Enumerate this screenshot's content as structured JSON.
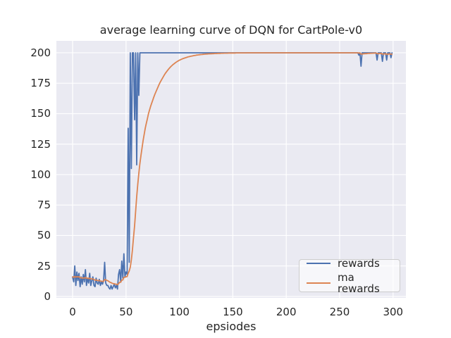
{
  "title": "average learning curve of DQN for CartPole-v0",
  "xlabel": "epsiodes",
  "colors": {
    "figure_background": "#ffffff",
    "axes_background": "#eaeaf2",
    "grid": "#ffffff",
    "text": "#262626",
    "rewards_line": "#4c72b0",
    "ma_rewards_line": "#dd8452",
    "legend_border": "#cccccc"
  },
  "legend": {
    "position": "lower right",
    "items": [
      {
        "label": "rewards",
        "color": "#4c72b0"
      },
      {
        "label": "ma rewards",
        "color": "#dd8452"
      }
    ]
  },
  "chart_data": {
    "type": "line",
    "title": "average learning curve of DQN for CartPole-v0",
    "xlabel": "epsiodes",
    "ylabel": "",
    "grid": true,
    "legend_position": "lower right",
    "x_ticks": [
      0,
      50,
      100,
      150,
      200,
      250,
      300
    ],
    "y_ticks": [
      0,
      25,
      50,
      75,
      100,
      125,
      150,
      175,
      200
    ],
    "xlim": [
      -15.2,
      312.0
    ],
    "ylim": [
      -1.2,
      209.8
    ],
    "x_start": 0,
    "x_step": 1,
    "series": [
      {
        "name": "rewards",
        "color": "#4c72b0",
        "values": [
          16,
          12,
          25,
          9,
          20,
          13,
          19,
          8,
          16,
          10,
          18,
          12,
          22,
          9,
          15,
          11,
          19,
          9,
          13,
          16,
          9,
          8,
          15,
          11,
          10,
          14,
          9,
          12,
          10,
          13,
          28,
          11,
          9,
          9,
          7,
          6,
          9,
          6,
          8,
          10,
          7,
          9,
          6,
          18,
          22,
          12,
          29,
          15,
          35,
          16,
          20,
          18,
          138,
          28,
          200,
          105,
          200,
          200,
          145,
          200,
          108,
          200,
          165,
          200,
          200,
          200,
          200,
          200,
          200,
          200,
          200,
          200,
          200,
          200,
          200,
          200,
          200,
          200,
          200,
          200,
          200,
          200,
          200,
          200,
          200,
          200,
          200,
          200,
          200,
          200,
          200,
          200,
          200,
          200,
          200,
          200,
          200,
          200,
          200,
          200,
          200,
          200,
          200,
          200,
          200,
          200,
          200,
          200,
          200,
          200,
          200,
          200,
          200,
          200,
          200,
          200,
          200,
          200,
          200,
          200,
          200,
          200,
          200,
          200,
          200,
          200,
          200,
          200,
          200,
          200,
          200,
          200,
          200,
          200,
          200,
          200,
          200,
          200,
          200,
          200,
          200,
          200,
          200,
          200,
          200,
          200,
          200,
          200,
          200,
          200,
          200,
          200,
          200,
          200,
          200,
          200,
          200,
          200,
          200,
          200,
          200,
          200,
          200,
          200,
          200,
          200,
          200,
          200,
          200,
          200,
          200,
          200,
          200,
          200,
          200,
          200,
          200,
          200,
          200,
          200,
          200,
          200,
          200,
          200,
          200,
          200,
          200,
          200,
          200,
          200,
          200,
          200,
          200,
          200,
          200,
          200,
          200,
          200,
          200,
          200,
          200,
          200,
          200,
          200,
          200,
          200,
          200,
          200,
          200,
          200,
          200,
          200,
          200,
          200,
          200,
          200,
          200,
          200,
          200,
          200,
          200,
          200,
          200,
          200,
          200,
          200,
          200,
          200,
          200,
          200,
          200,
          200,
          200,
          200,
          200,
          200,
          200,
          200,
          200,
          200,
          200,
          200,
          200,
          200,
          200,
          200,
          200,
          200,
          200,
          200,
          200,
          200,
          200,
          200,
          200,
          200,
          200,
          200,
          200,
          200,
          200,
          200,
          200,
          200,
          200,
          200,
          200,
          200,
          198,
          200,
          189,
          200,
          200,
          200,
          200,
          200,
          200,
          200,
          200,
          200,
          200,
          200,
          200,
          200,
          200,
          194,
          200,
          200,
          200,
          200,
          193,
          200,
          200,
          200,
          194,
          200,
          200,
          200,
          196,
          200
        ]
      },
      {
        "name": "ma rewards",
        "color": "#dd8452",
        "values": [
          16.0,
          15.6,
          16.5,
          15.8,
          16.2,
          15.9,
          16.2,
          15.4,
          15.4,
          14.9,
          15.2,
          14.9,
          15.6,
          14.9,
          15.0,
          14.6,
          15.0,
          14.4,
          14.3,
          14.4,
          13.9,
          13.3,
          13.5,
          13.2,
          12.9,
          13.0,
          12.6,
          12.5,
          12.3,
          12.4,
          13.9,
          13.6,
          13.2,
          12.8,
          12.2,
          11.6,
          11.3,
          10.8,
          10.5,
          10.4,
          10.1,
          10.0,
          9.6,
          10.4,
          11.6,
          11.6,
          13.4,
          13.5,
          15.7,
          15.7,
          16.1,
          16.3,
          19.0,
          21.0,
          24.0,
          30.0,
          38.0,
          48.0,
          58.0,
          70.0,
          82.0,
          92.0,
          101.0,
          109.0,
          116.0,
          122.0,
          128.0,
          133.0,
          138.0,
          142.0,
          146.0,
          150.0,
          153.0,
          156.0,
          158.5,
          161.0,
          163.5,
          166.0,
          168.0,
          170.0,
          172.0,
          174.0,
          175.8,
          177.5,
          179.0,
          180.5,
          182.0,
          183.3,
          184.5,
          185.7,
          186.8,
          187.8,
          188.7,
          189.5,
          190.3,
          191.0,
          191.7,
          192.3,
          192.9,
          193.4,
          193.9,
          194.3,
          194.7,
          195.1,
          195.4,
          195.7,
          196.0,
          196.3,
          196.6,
          196.8,
          197.0,
          197.2,
          197.4,
          197.6,
          197.8,
          197.9,
          198.1,
          198.2,
          198.3,
          198.4,
          198.5,
          198.6,
          198.7,
          198.8,
          198.9,
          199.0,
          199.0,
          199.1,
          199.1,
          199.2,
          199.2,
          199.3,
          199.3,
          199.4,
          199.4,
          199.4,
          199.5,
          199.5,
          199.5,
          199.6,
          199.6,
          199.6,
          199.7,
          199.7,
          199.7,
          199.7,
          199.8,
          199.8,
          199.8,
          199.8,
          199.8,
          199.8,
          199.8,
          199.9,
          199.9,
          199.9,
          199.9,
          199.9,
          199.9,
          199.9,
          199.9,
          199.9,
          199.9,
          200.0,
          200.0,
          200.0,
          200.0,
          200.0,
          200.0,
          200.0,
          200,
          200,
          200,
          200,
          200,
          200,
          200,
          200,
          200,
          200,
          200,
          200,
          200,
          200,
          200,
          200,
          200,
          200,
          200,
          200,
          200,
          200,
          200,
          200,
          200,
          200,
          200,
          200,
          200,
          200,
          200,
          200,
          200,
          200,
          200,
          200,
          200,
          200,
          200,
          200,
          200,
          200,
          200,
          200,
          200,
          200,
          200,
          200,
          200,
          200,
          200,
          200,
          200,
          200,
          200,
          200,
          200,
          200,
          200,
          200,
          200,
          200,
          200,
          200,
          200,
          200,
          200,
          200,
          200,
          200,
          200,
          200,
          200,
          200,
          200,
          200,
          200,
          200,
          200,
          200,
          200,
          200,
          200,
          200,
          200,
          200,
          200,
          200,
          200,
          200,
          200,
          200,
          200,
          200,
          200,
          200,
          200,
          200,
          199.8,
          199.8,
          198.9,
          199.0,
          199.1,
          199.2,
          199.3,
          199.3,
          199.4,
          199.5,
          199.5,
          199.6,
          199.6,
          199.7,
          199.7,
          199.8,
          199.8,
          199.2,
          199.3,
          199.4,
          199.4,
          199.5,
          198.9,
          199.0,
          199.1,
          199.2,
          198.7,
          198.8,
          199.0,
          199.1,
          198.8,
          198.9
        ]
      }
    ]
  }
}
